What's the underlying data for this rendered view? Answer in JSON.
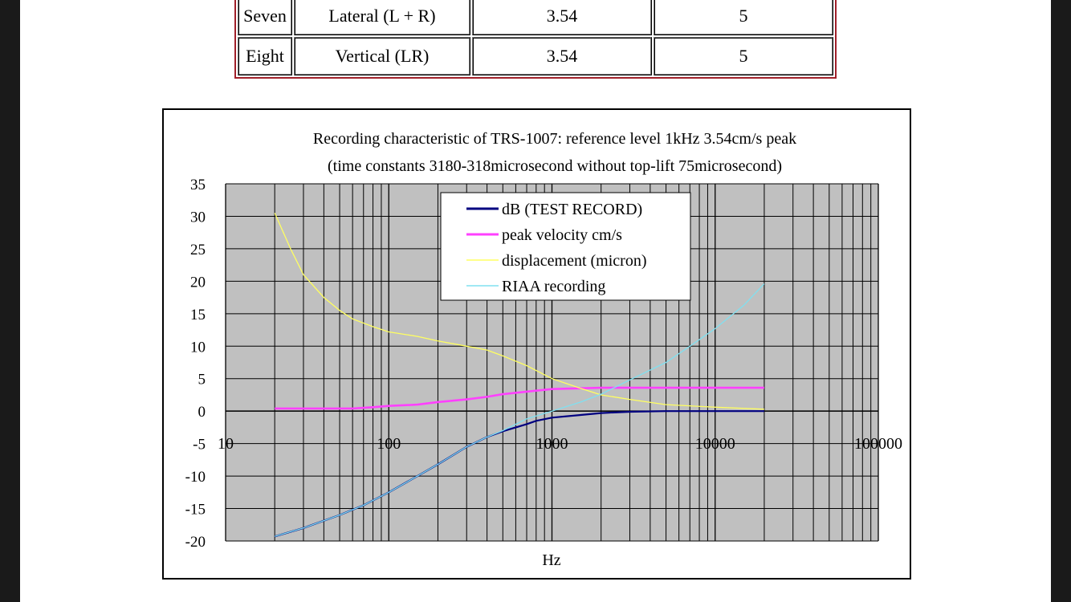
{
  "table": {
    "rows": [
      [
        "Seven",
        "Lateral (L + R)",
        "3.54",
        "5"
      ],
      [
        "Eight",
        "Vertical (LR)",
        "3.54",
        "5"
      ]
    ]
  },
  "chart_data": {
    "type": "line",
    "title": "Recording characteristic of TRS-1007: reference level 1kHz 3.54cm/s peak",
    "subtitle": "(time constants 3180-318microsecond without top-lift 75microsecond)",
    "xlabel": "Hz",
    "ylabel": "",
    "x_scale": "log",
    "xlim": [
      10,
      100000
    ],
    "ylim": [
      -20,
      35
    ],
    "x_ticks": [
      "10",
      "100",
      "1000",
      "10000",
      "100000"
    ],
    "y_ticks": [
      "35",
      "30",
      "25",
      "20",
      "15",
      "10",
      "5",
      "0",
      "-5",
      "-10",
      "-15",
      "-20"
    ],
    "grid": true,
    "plot_background": "#c0c0c0",
    "legend_position": "top-center",
    "series": [
      {
        "name": "dB (TEST RECORD)",
        "color": "#000080",
        "points": [
          [
            20,
            -19.3
          ],
          [
            30,
            -18
          ],
          [
            50,
            -16
          ],
          [
            70,
            -14.5
          ],
          [
            100,
            -12.5
          ],
          [
            150,
            -10
          ],
          [
            200,
            -8.2
          ],
          [
            300,
            -5.5
          ],
          [
            400,
            -4
          ],
          [
            500,
            -3.1
          ],
          [
            700,
            -2
          ],
          [
            800,
            -1.5
          ],
          [
            1000,
            -1
          ],
          [
            1500,
            -0.6
          ],
          [
            2000,
            -0.3
          ],
          [
            3000,
            -0.1
          ],
          [
            5000,
            0
          ],
          [
            10000,
            0
          ],
          [
            20000,
            0
          ]
        ]
      },
      {
        "name": "peak velocity cm/s",
        "color": "#ff40ff",
        "points": [
          [
            20,
            0.4
          ],
          [
            60,
            0.4
          ],
          [
            80,
            0.6
          ],
          [
            100,
            0.8
          ],
          [
            150,
            1
          ],
          [
            200,
            1.4
          ],
          [
            300,
            1.8
          ],
          [
            400,
            2.2
          ],
          [
            500,
            2.6
          ],
          [
            700,
            3
          ],
          [
            1000,
            3.4
          ],
          [
            2000,
            3.6
          ],
          [
            5000,
            3.6
          ],
          [
            20000,
            3.6
          ]
        ]
      },
      {
        "name": "displacement (micron)",
        "color": "#ffff60",
        "points": [
          [
            20,
            30.5
          ],
          [
            25,
            25
          ],
          [
            30,
            21
          ],
          [
            40,
            17.5
          ],
          [
            50,
            15.5
          ],
          [
            60,
            14.2
          ],
          [
            80,
            13
          ],
          [
            100,
            12.2
          ],
          [
            150,
            11.5
          ],
          [
            200,
            10.8
          ],
          [
            300,
            10
          ],
          [
            400,
            9.4
          ],
          [
            500,
            8.5
          ],
          [
            700,
            7
          ],
          [
            1000,
            5
          ],
          [
            1500,
            3.5
          ],
          [
            2000,
            2.5
          ],
          [
            3000,
            1.8
          ],
          [
            5000,
            1
          ],
          [
            10000,
            0.6
          ],
          [
            20000,
            0.3
          ]
        ]
      },
      {
        "name": "RIAA recording",
        "color": "#80e0f0",
        "points": [
          [
            20,
            -19.3
          ],
          [
            30,
            -18
          ],
          [
            50,
            -16
          ],
          [
            70,
            -14.5
          ],
          [
            100,
            -12.5
          ],
          [
            150,
            -10
          ],
          [
            200,
            -8.2
          ],
          [
            300,
            -5.5
          ],
          [
            400,
            -4
          ],
          [
            500,
            -3
          ],
          [
            700,
            -1.2
          ],
          [
            1000,
            0
          ],
          [
            1500,
            1.4
          ],
          [
            2000,
            2.6
          ],
          [
            3000,
            4.8
          ],
          [
            5000,
            7.5
          ],
          [
            7000,
            10
          ],
          [
            10000,
            12.7
          ],
          [
            15000,
            16.3
          ],
          [
            20000,
            19.6
          ]
        ]
      }
    ]
  }
}
